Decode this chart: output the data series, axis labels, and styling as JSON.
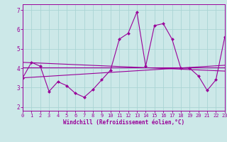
{
  "title_partial": "7",
  "xlabel": "Windchill (Refroidissement éolien,°C)",
  "xlim": [
    0,
    23
  ],
  "ylim": [
    1.8,
    7.3
  ],
  "yticks": [
    2,
    3,
    4,
    5,
    6,
    7
  ],
  "xticks": [
    0,
    1,
    2,
    3,
    4,
    5,
    6,
    7,
    8,
    9,
    10,
    11,
    12,
    13,
    14,
    15,
    16,
    17,
    18,
    19,
    20,
    21,
    22,
    23
  ],
  "bg_color": "#cce8e8",
  "grid_color": "#aad4d4",
  "line_color": "#990099",
  "line1_x": [
    0,
    1,
    2,
    3,
    4,
    5,
    6,
    7,
    8,
    9,
    10,
    11,
    12,
    13,
    14,
    15,
    16,
    17,
    18,
    19,
    20,
    21,
    22,
    23
  ],
  "line1_y": [
    3.5,
    4.3,
    4.1,
    2.8,
    3.3,
    3.1,
    2.7,
    2.5,
    2.9,
    3.4,
    3.9,
    5.5,
    5.8,
    6.9,
    4.1,
    6.2,
    6.3,
    5.5,
    4.0,
    4.0,
    3.6,
    2.85,
    3.4,
    5.6
  ],
  "line2_x": [
    0,
    23
  ],
  "line2_y": [
    3.5,
    4.15
  ],
  "line3_x": [
    0,
    23
  ],
  "line3_y": [
    4.3,
    3.85
  ],
  "line4_x": [
    0,
    23
  ],
  "line4_y": [
    4.05,
    4.05
  ],
  "marker_style": "D",
  "marker_size": 2.0,
  "line_width": 0.8,
  "tick_fontsize": 5.5,
  "xlabel_fontsize": 5.5
}
